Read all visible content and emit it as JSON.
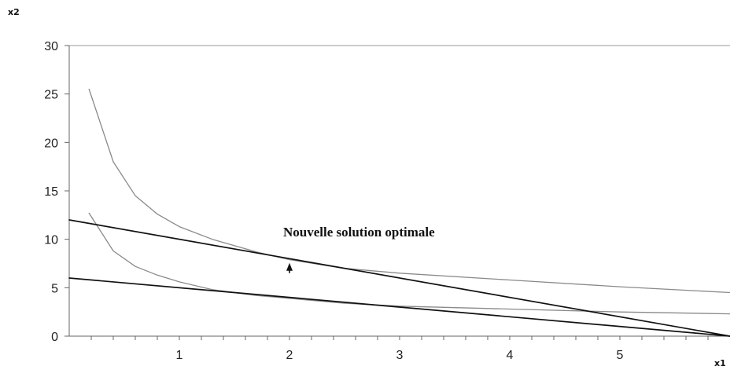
{
  "chart_data": {
    "type": "line",
    "xlabel": "x1",
    "ylabel": "x2",
    "xlim": [
      0,
      6
    ],
    "ylim": [
      0,
      30
    ],
    "x_ticks": [
      1,
      2,
      3,
      4,
      5
    ],
    "y_ticks": [
      0,
      5,
      10,
      15,
      20,
      25,
      30
    ],
    "grid": false,
    "series": [
      {
        "style": "thin-gray",
        "x": [
          0.18,
          0.4,
          0.6,
          0.8,
          1.0,
          1.3,
          1.7,
          2.0,
          2.5,
          3.0,
          4.0,
          5.0,
          6.0
        ],
        "y": [
          25.5,
          18.0,
          14.5,
          12.6,
          11.3,
          10.0,
          8.7,
          7.9,
          7.0,
          6.5,
          5.8,
          5.1,
          4.5
        ]
      },
      {
        "style": "thin-gray",
        "x": [
          0.18,
          0.4,
          0.6,
          0.8,
          1.0,
          1.3,
          1.7,
          2.0,
          2.5,
          3.0,
          4.0,
          5.0,
          6.0
        ],
        "y": [
          12.7,
          8.8,
          7.2,
          6.3,
          5.6,
          4.8,
          4.2,
          3.9,
          3.4,
          3.1,
          2.8,
          2.5,
          2.3
        ]
      },
      {
        "style": "black",
        "x": [
          0,
          2,
          6
        ],
        "y": [
          12,
          8,
          0
        ]
      },
      {
        "style": "black",
        "x": [
          0,
          6
        ],
        "y": [
          6,
          0
        ]
      }
    ],
    "annotations": [
      {
        "text": "Nouvelle solution optimale",
        "x": 2.0,
        "y": 10.3
      }
    ],
    "arrow": {
      "x": 2.0,
      "y_from": 6.5,
      "y_to": 7.4
    }
  }
}
